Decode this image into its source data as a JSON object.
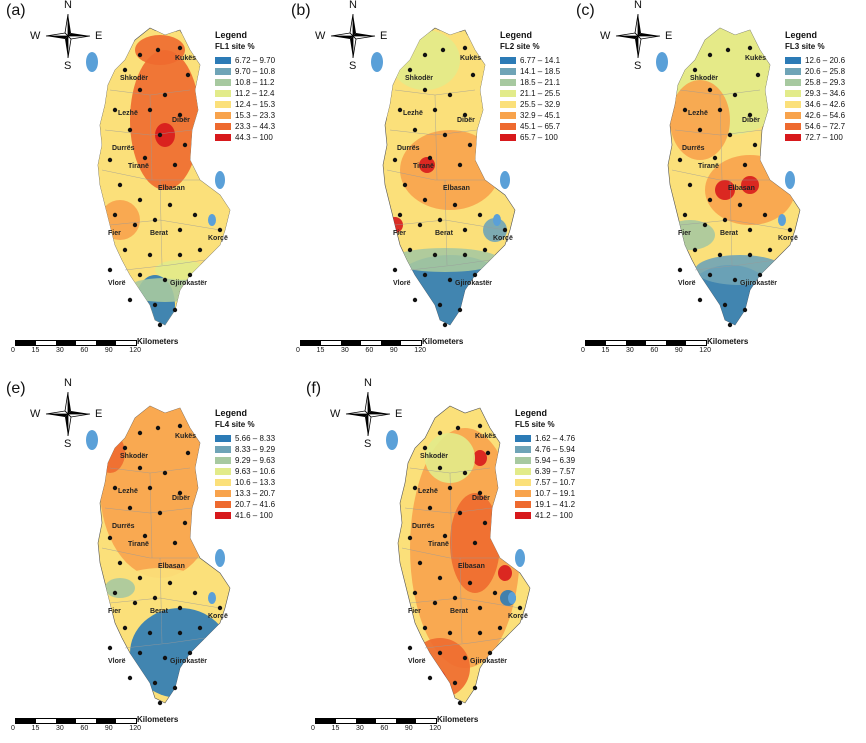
{
  "compass": {
    "n": "N",
    "s": "S",
    "e": "E",
    "w": "W"
  },
  "scale": {
    "unit_label": "Kilometers",
    "ticks": [
      "0",
      "15",
      "30",
      "60",
      "90",
      "120"
    ]
  },
  "cities": [
    "Shkodër",
    "Kukës",
    "Lezhë",
    "Dibër",
    "Durrës",
    "Tiranë",
    "Elbasan",
    "Fier",
    "Berat",
    "Korçë",
    "Vlorë",
    "Gjirokastër"
  ],
  "panels": [
    {
      "label": "(a)",
      "legend_title": "Legend",
      "legend_subtitle": "FL1 site %",
      "classes": [
        {
          "range": "6.72 – 9.70",
          "color": "#2c7bb6"
        },
        {
          "range": "9.70 – 10.8",
          "color": "#6fa4b7"
        },
        {
          "range": "10.8 – 11.2",
          "color": "#a7c9a0"
        },
        {
          "range": "11.2 – 12.4",
          "color": "#e2eb8a"
        },
        {
          "range": "12.4 – 15.3",
          "color": "#fbe07a"
        },
        {
          "range": "15.3 – 23.3",
          "color": "#f8a34c"
        },
        {
          "range": "23.3 – 44.3",
          "color": "#ee6a2f"
        },
        {
          "range": "44.3 – 100",
          "color": "#d7191c"
        }
      ]
    },
    {
      "label": "(b)",
      "legend_title": "Legend",
      "legend_subtitle": "FL2 site %",
      "classes": [
        {
          "range": "6.77 – 14.1",
          "color": "#2c7bb6"
        },
        {
          "range": "14.1 – 18.5",
          "color": "#6fa4b7"
        },
        {
          "range": "18.5 – 21.1",
          "color": "#a7c9a0"
        },
        {
          "range": "21.1 – 25.5",
          "color": "#e2eb8a"
        },
        {
          "range": "25.5 – 32.9",
          "color": "#fbe07a"
        },
        {
          "range": "32.9 – 45.1",
          "color": "#f8a34c"
        },
        {
          "range": "45.1 – 65.7",
          "color": "#ee6a2f"
        },
        {
          "range": "65.7 – 100",
          "color": "#d7191c"
        }
      ]
    },
    {
      "label": "(c)",
      "legend_title": "Legend",
      "legend_subtitle": "FL3 site %",
      "classes": [
        {
          "range": "12.6 – 20.6",
          "color": "#2c7bb6"
        },
        {
          "range": "20.6 – 25.8",
          "color": "#6fa4b7"
        },
        {
          "range": "25.8 – 29.3",
          "color": "#a7c9a0"
        },
        {
          "range": "29.3 – 34.6",
          "color": "#e2eb8a"
        },
        {
          "range": "34.6 – 42.6",
          "color": "#fbe07a"
        },
        {
          "range": "42.6 – 54.6",
          "color": "#f8a34c"
        },
        {
          "range": "54.6 – 72.7",
          "color": "#ee6a2f"
        },
        {
          "range": "72.7 – 100",
          "color": "#d7191c"
        }
      ]
    },
    {
      "label": "(e)",
      "legend_title": "Legend",
      "legend_subtitle": "FL4 site %",
      "classes": [
        {
          "range": "5.66 – 8.33",
          "color": "#2c7bb6"
        },
        {
          "range": "8.33 – 9.29",
          "color": "#6fa4b7"
        },
        {
          "range": "9.29 – 9.63",
          "color": "#a7c9a0"
        },
        {
          "range": "9.63 – 10.6",
          "color": "#e2eb8a"
        },
        {
          "range": "10.6 – 13.3",
          "color": "#fbe07a"
        },
        {
          "range": "13.3 – 20.7",
          "color": "#f8a34c"
        },
        {
          "range": "20.7 – 41.6",
          "color": "#ee6a2f"
        },
        {
          "range": "41.6 – 100",
          "color": "#d7191c"
        }
      ]
    },
    {
      "label": "(f)",
      "legend_title": "Legend",
      "legend_subtitle": "FL5 site %",
      "classes": [
        {
          "range": "1.62 – 4.76",
          "color": "#2c7bb6"
        },
        {
          "range": "4.76 – 5.94",
          "color": "#6fa4b7"
        },
        {
          "range": "5.94 – 6.39",
          "color": "#a7c9a0"
        },
        {
          "range": "6.39 – 7.57",
          "color": "#e2eb8a"
        },
        {
          "range": "7.57 – 10.7",
          "color": "#fbe07a"
        },
        {
          "range": "10.7 – 19.1",
          "color": "#f8a34c"
        },
        {
          "range": "19.1 – 41.2",
          "color": "#ee6a2f"
        },
        {
          "range": "41.2 – 100",
          "color": "#d7191c"
        }
      ]
    }
  ]
}
